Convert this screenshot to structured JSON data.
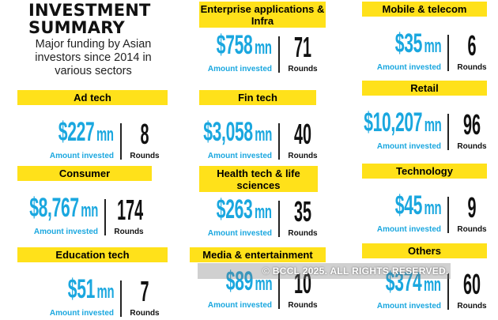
{
  "header": {
    "title_line1": "INVESTMENT",
    "title_line2": "SUMMARY",
    "subtitle": "Major funding by Asian investors since 2014 in various sectors"
  },
  "colors": {
    "label_bg": "#ffe11a",
    "amount_text": "#1aa7df",
    "rounds_text": "#111111"
  },
  "sectors": [
    {
      "name": "Ad tech",
      "amount": "$227",
      "unit": "mn",
      "rounds": "8"
    },
    {
      "name": "Consumer",
      "amount": "$8,767",
      "unit": "mn",
      "rounds": "174"
    },
    {
      "name": "Education tech",
      "amount": "$51",
      "unit": "mn",
      "rounds": "7"
    },
    {
      "name": "Enterprise applications & Infra",
      "amount": "$758",
      "unit": "mn",
      "rounds": "71"
    },
    {
      "name": "Fin tech",
      "amount": "$3,058",
      "unit": "mn",
      "rounds": "40"
    },
    {
      "name": "Health tech & life sciences",
      "amount": "$263",
      "unit": "mn",
      "rounds": "35"
    },
    {
      "name": "Media & entertainment",
      "amount": "$89",
      "unit": "mn",
      "rounds": "10"
    },
    {
      "name": "Mobile & telecom",
      "amount": "$35",
      "unit": "mn",
      "rounds": "6"
    },
    {
      "name": "Retail",
      "amount": "$10,207",
      "unit": "mn",
      "rounds": "96"
    },
    {
      "name": "Technology",
      "amount": "$45",
      "unit": "mn",
      "rounds": "9"
    },
    {
      "name": "Others",
      "amount": "$374",
      "unit": "mn",
      "rounds": "60"
    }
  ],
  "captions": {
    "amount": "Amount invested",
    "rounds": "Rounds"
  },
  "watermark": "© BCCL 2025. ALL RIGHTS RESERVED."
}
